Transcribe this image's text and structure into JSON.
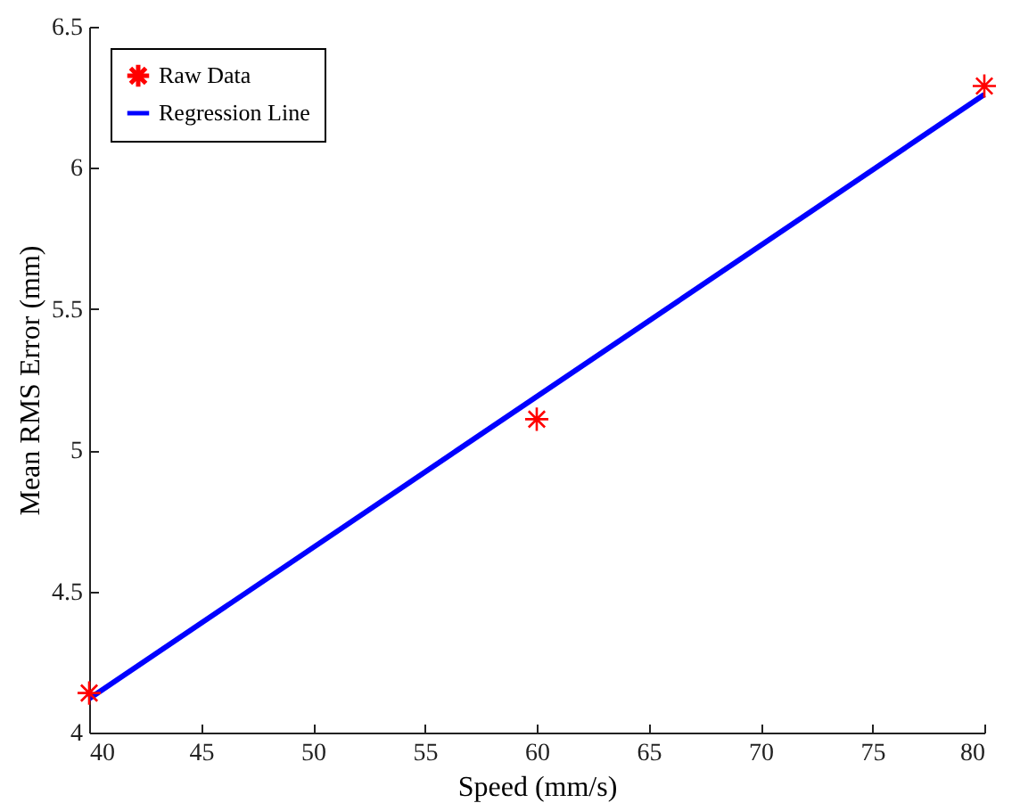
{
  "chart_data": {
    "type": "scatter",
    "xlabel": "Speed (mm/s)",
    "ylabel": "Mean RMS Error (mm)",
    "xlim": [
      40,
      80
    ],
    "xticks": [
      40,
      45,
      50,
      55,
      60,
      65,
      70,
      75,
      80
    ],
    "ylim": [
      4,
      6.5
    ],
    "yticks": [
      4,
      4.5,
      5,
      5.5,
      6,
      6.5
    ],
    "grid": false,
    "legend": "top left",
    "series": [
      {
        "name": "Raw Data",
        "marker": "cross",
        "color": "#ff0000",
        "x": [
          40,
          60,
          80
        ],
        "values": [
          4.14,
          5.11,
          6.29
        ]
      },
      {
        "name": "Regression Line",
        "type": "line",
        "color": "#0000ff",
        "x": [
          40,
          80
        ],
        "values": [
          4.12,
          6.26
        ]
      }
    ]
  }
}
